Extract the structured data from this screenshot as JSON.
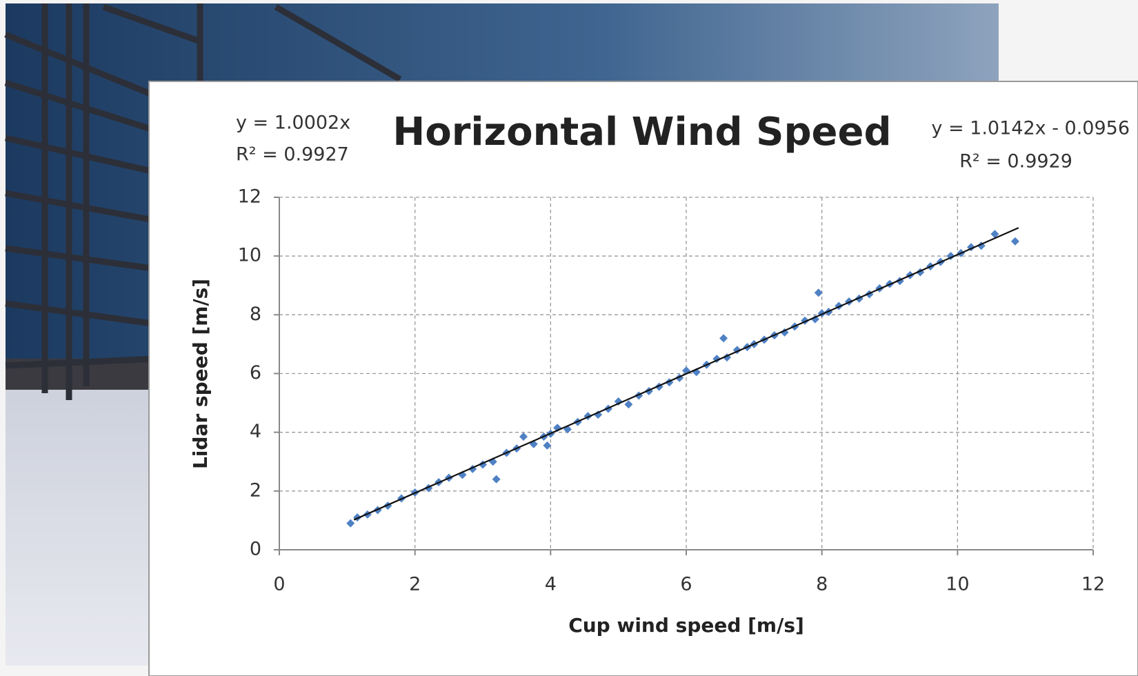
{
  "chart_data": {
    "type": "scatter",
    "title": "Horizontal Wind Speed",
    "x_label": "Cup wind speed  [m/s]",
    "y_label": "Lidar speed  [m/s]",
    "annotations": [
      "y = 1.0002x",
      "R² = 0.9927",
      "y = 1.0142x - 0.0956",
      "R² = 0.9929"
    ],
    "xlim": [
      0,
      12
    ],
    "ylim": [
      0,
      12
    ],
    "xticks": [
      0,
      2,
      4,
      6,
      8,
      10,
      12
    ],
    "yticks": [
      0,
      2,
      4,
      6,
      8,
      10,
      12
    ],
    "grid": true,
    "series": [
      {
        "color": "#4f81c4",
        "x": [
          1.05,
          1.15,
          1.3,
          1.45,
          1.6,
          1.8,
          2.0,
          2.2,
          2.35,
          2.5,
          2.7,
          2.85,
          3.0,
          3.15,
          3.2,
          3.35,
          3.5,
          3.6,
          3.75,
          3.9,
          4.0,
          4.1,
          4.25,
          4.4,
          4.55,
          4.7,
          4.85,
          5.0,
          5.15,
          5.3,
          5.45,
          5.6,
          5.75,
          5.9,
          6.0,
          6.15,
          6.3,
          6.45,
          6.6,
          6.75,
          6.9,
          7.0,
          7.15,
          7.3,
          7.45,
          7.6,
          7.75,
          7.9,
          8.0,
          8.1,
          8.25,
          8.4,
          8.55,
          8.7,
          8.85,
          9.0,
          9.15,
          9.3,
          9.45,
          9.6,
          9.75,
          9.9,
          10.05,
          10.2,
          10.35,
          10.55,
          10.85,
          3.95,
          6.55,
          7.95
        ],
        "values": [
          0.9,
          1.1,
          1.2,
          1.35,
          1.5,
          1.75,
          1.95,
          2.1,
          2.3,
          2.45,
          2.55,
          2.75,
          2.9,
          3.0,
          2.4,
          3.3,
          3.45,
          3.85,
          3.6,
          3.85,
          3.95,
          4.15,
          4.1,
          4.35,
          4.55,
          4.6,
          4.8,
          5.05,
          4.95,
          5.25,
          5.4,
          5.55,
          5.7,
          5.85,
          6.1,
          6.05,
          6.3,
          6.5,
          6.55,
          6.8,
          6.9,
          7.0,
          7.15,
          7.3,
          7.4,
          7.6,
          7.8,
          7.85,
          8.05,
          8.1,
          8.3,
          8.45,
          8.55,
          8.7,
          8.9,
          9.05,
          9.15,
          9.35,
          9.45,
          9.65,
          9.8,
          10.0,
          10.1,
          10.3,
          10.35,
          10.75,
          10.5,
          3.55,
          7.2,
          8.75
        ]
      }
    ],
    "trendline": {
      "color": "#111111",
      "x": [
        1.1,
        10.9
      ],
      "values": [
        1.02,
        10.96
      ]
    }
  }
}
